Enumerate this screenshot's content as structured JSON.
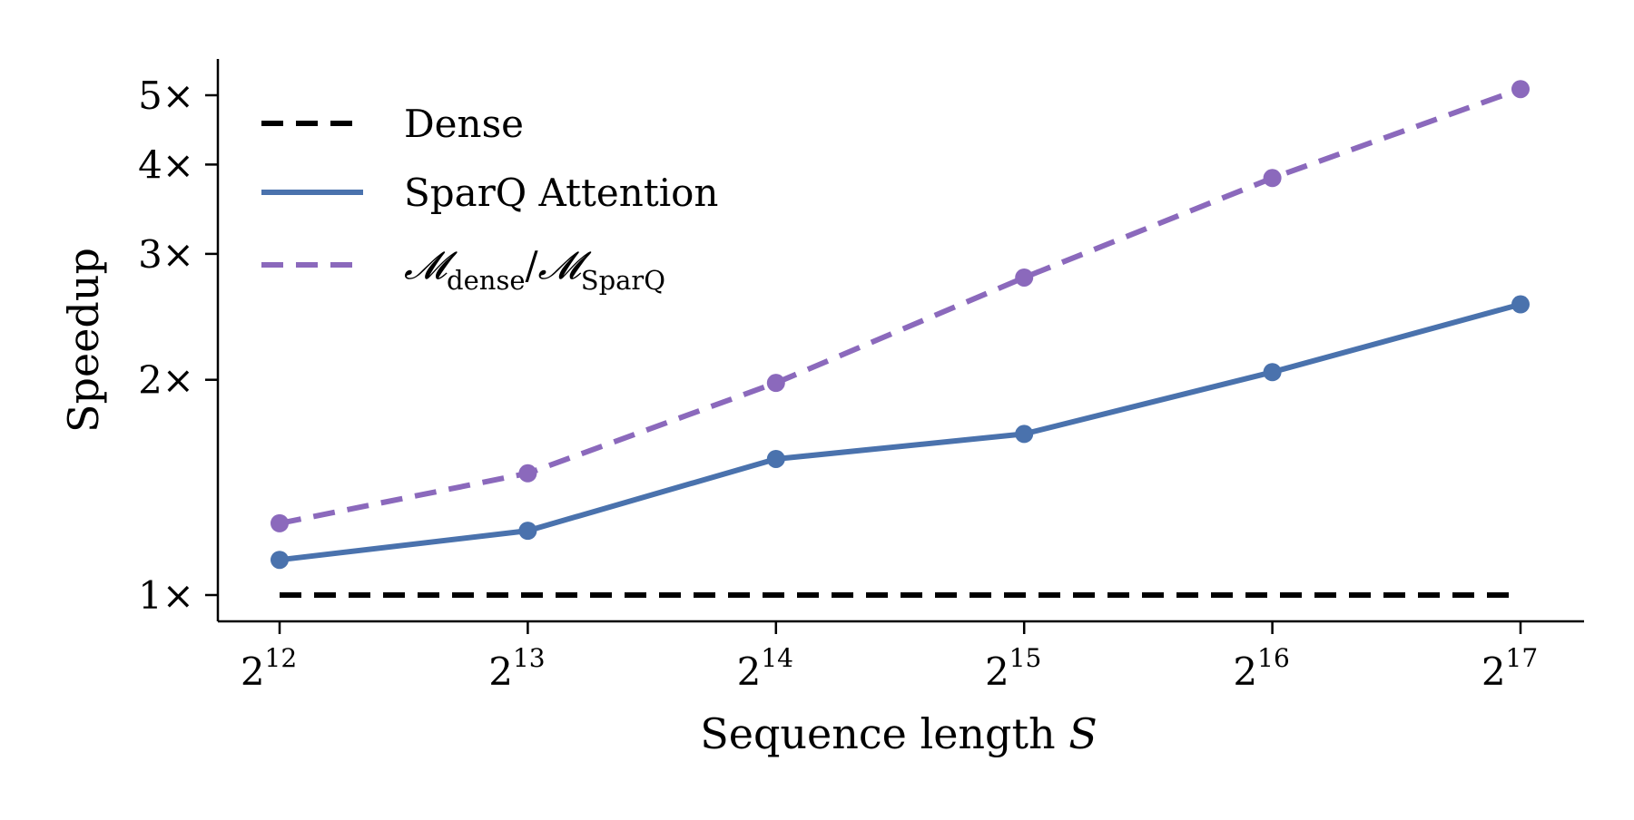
{
  "chart_data": {
    "type": "line",
    "xlabel": "Sequence length",
    "xlabel_var": "S",
    "ylabel": "Speedup",
    "x": [
      4096,
      8192,
      16384,
      32768,
      65536,
      131072
    ],
    "x_tick_labels": [
      {
        "base": "2",
        "exp": "12"
      },
      {
        "base": "2",
        "exp": "13"
      },
      {
        "base": "2",
        "exp": "14"
      },
      {
        "base": "2",
        "exp": "15"
      },
      {
        "base": "2",
        "exp": "16"
      },
      {
        "base": "2",
        "exp": "17"
      }
    ],
    "xscale": "log2",
    "yscale": "log",
    "ylim": [
      0.93,
      5.4
    ],
    "y_ticks": [
      1,
      2,
      3,
      4,
      5
    ],
    "y_tick_labels": [
      "1×",
      "2×",
      "3×",
      "4×",
      "5×"
    ],
    "legend_position": "top-left",
    "grid": false,
    "series": [
      {
        "name": "Dense",
        "style": "dashed",
        "markers": false,
        "color": "#000000",
        "values": [
          1.0,
          1.0,
          1.0,
          1.0,
          1.0,
          1.0
        ]
      },
      {
        "name": "SparQ Attention",
        "style": "solid",
        "markers": true,
        "color": "#4a72ad",
        "values": [
          1.12,
          1.23,
          1.55,
          1.68,
          2.05,
          2.55
        ]
      },
      {
        "name_parts": {
          "sym1": "𝓜",
          "sub1": "dense",
          "slash": "/",
          "sym2": "𝓜",
          "sub2": "SparQ"
        },
        "style": "dashed",
        "markers": true,
        "color": "#8b69bc",
        "values": [
          1.26,
          1.48,
          1.98,
          2.78,
          3.83,
          5.1
        ]
      }
    ]
  }
}
